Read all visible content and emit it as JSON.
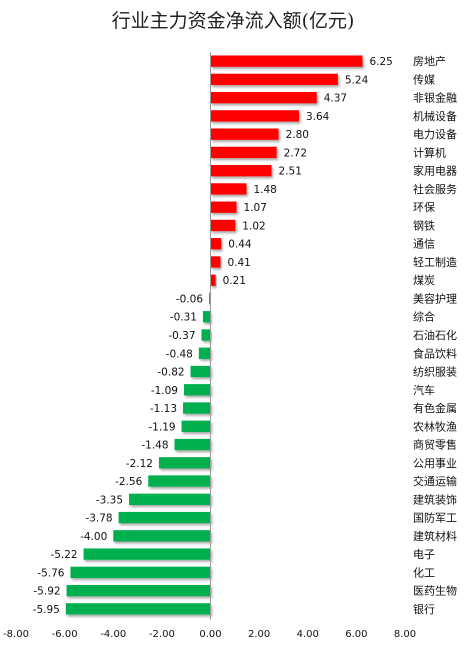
{
  "chart_data": {
    "type": "bar",
    "orientation": "horizontal",
    "title": "行业主力资金净流入额(亿元)",
    "xlim": [
      -8,
      8
    ],
    "x_ticks": [
      "-8.00",
      "-6.00",
      "-4.00",
      "-2.00",
      "0.00",
      "2.00",
      "4.00",
      "6.00",
      "8.00"
    ],
    "grid": false,
    "legend": "none",
    "colors": {
      "positive": "#ff0000",
      "negative": "#00b050"
    },
    "categories": [
      "房地产",
      "传媒",
      "非银金融",
      "机械设备",
      "电力设备",
      "计算机",
      "家用电器",
      "社会服务",
      "环保",
      "钢铁",
      "通信",
      "轻工制造",
      "煤炭",
      "美容护理",
      "综合",
      "石油石化",
      "食品饮料",
      "纺织服装",
      "汽车",
      "有色金属",
      "农林牧渔",
      "商贸零售",
      "公用事业",
      "交通运输",
      "建筑装饰",
      "国防军工",
      "建筑材料",
      "电子",
      "化工",
      "医药生物",
      "银行"
    ],
    "values": [
      6.25,
      5.24,
      4.37,
      3.64,
      2.8,
      2.72,
      2.51,
      1.48,
      1.07,
      1.02,
      0.44,
      0.41,
      0.21,
      -0.06,
      -0.31,
      -0.37,
      -0.48,
      -0.82,
      -1.09,
      -1.13,
      -1.19,
      -1.48,
      -2.12,
      -2.56,
      -3.35,
      -3.78,
      -4.0,
      -5.22,
      -5.76,
      -5.92,
      -5.95
    ],
    "value_labels": [
      "6.25",
      "5.24",
      "4.37",
      "3.64",
      "2.80",
      "2.72",
      "2.51",
      "1.48",
      "1.07",
      "1.02",
      "0.44",
      "0.41",
      "0.21",
      "-0.06",
      "-0.31",
      "-0.37",
      "-0.48",
      "-0.82",
      "-1.09",
      "-1.13",
      "-1.19",
      "-1.48",
      "-2.12",
      "-2.56",
      "-3.35",
      "-3.78",
      "-4.00",
      "-5.22",
      "-5.76",
      "-5.92",
      "-5.95"
    ]
  }
}
